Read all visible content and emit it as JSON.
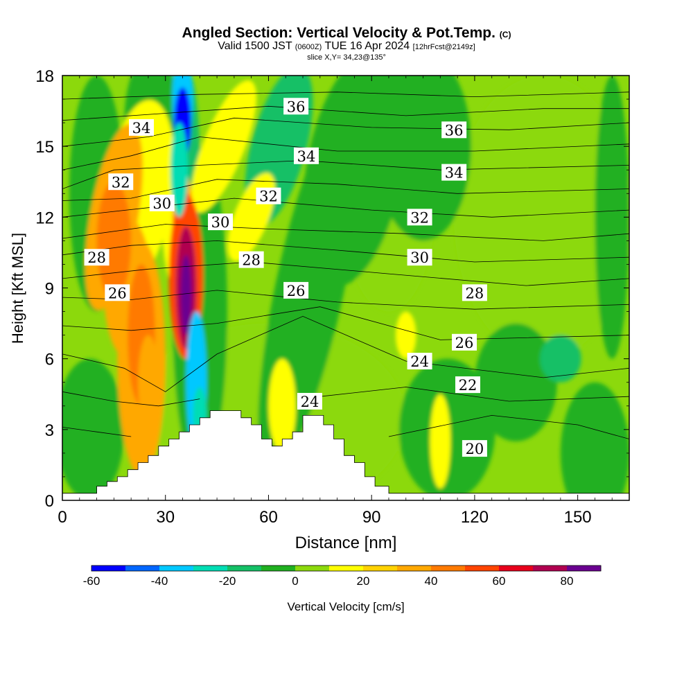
{
  "header": {
    "title": "Angled Section: Vertical Velocity & Pot.Temp.",
    "title_mark": "(C)",
    "valid_prefix": "Valid 1500 JST",
    "valid_utc": "(0600Z)",
    "valid_date": "TUE 16 Apr 2024",
    "forecast": "[12hrFcst@2149z]",
    "slice": "slice X,Y= 34,23@135°"
  },
  "chart_data": {
    "type": "heatmap",
    "xlabel": "Distance [nm]",
    "ylabel": "Height [Kft MSL]",
    "xlim": [
      0,
      165
    ],
    "ylim": [
      0,
      18
    ],
    "xticks": [
      0,
      30,
      60,
      90,
      120,
      150
    ],
    "yticks": [
      0,
      3,
      6,
      9,
      12,
      15,
      18
    ],
    "colorbar": {
      "label": "Vertical Velocity [cm/s]",
      "ticks": [
        -60,
        -40,
        -20,
        0,
        20,
        40,
        60,
        80
      ],
      "levels": [
        -60,
        -50,
        -40,
        -30,
        -20,
        -10,
        0,
        10,
        20,
        30,
        40,
        50,
        60,
        70,
        80,
        90
      ],
      "colors": [
        "#0000ff",
        "#0066ff",
        "#00c8ff",
        "#00ddb4",
        "#14c066",
        "#20b020",
        "#8cd90c",
        "#ffff00",
        "#ffd200",
        "#ffa800",
        "#ff7a00",
        "#ff4400",
        "#e8001c",
        "#b00050",
        "#6a0090"
      ]
    },
    "series": [
      {
        "name": "Vertical Velocity",
        "units": "cm/s",
        "features": [
          {
            "x": 36,
            "y": 9,
            "value": 85
          },
          {
            "x": 15,
            "y": 11,
            "value": 45
          },
          {
            "x": 22,
            "y": 7,
            "value": 40
          },
          {
            "x": 35,
            "y": 17,
            "value": -55
          },
          {
            "x": 39,
            "y": 5,
            "value": -35
          },
          {
            "x": 47,
            "y": 15,
            "value": 20
          },
          {
            "x": 68,
            "y": 16,
            "value": -20
          },
          {
            "x": 110,
            "y": 2,
            "value": 20
          },
          {
            "x": 145,
            "y": 6,
            "value": -20
          }
        ]
      },
      {
        "name": "Pot.Temp.",
        "units": "C",
        "contour_labels": [
          {
            "value": 36,
            "x": 68,
            "y": 16.7
          },
          {
            "value": 36,
            "x": 114,
            "y": 15.7
          },
          {
            "value": 34,
            "x": 23,
            "y": 15.8
          },
          {
            "value": 34,
            "x": 71,
            "y": 14.6
          },
          {
            "value": 34,
            "x": 114,
            "y": 13.9
          },
          {
            "value": 32,
            "x": 17,
            "y": 13.5
          },
          {
            "value": 32,
            "x": 60,
            "y": 12.9
          },
          {
            "value": 32,
            "x": 104,
            "y": 12.0
          },
          {
            "value": 30,
            "x": 29,
            "y": 12.6
          },
          {
            "value": 30,
            "x": 46,
            "y": 11.8
          },
          {
            "value": 30,
            "x": 104,
            "y": 10.3
          },
          {
            "value": 28,
            "x": 10,
            "y": 10.3
          },
          {
            "value": 28,
            "x": 55,
            "y": 10.2
          },
          {
            "value": 28,
            "x": 120,
            "y": 8.8
          },
          {
            "value": 26,
            "x": 16,
            "y": 8.8
          },
          {
            "value": 26,
            "x": 68,
            "y": 8.9
          },
          {
            "value": 26,
            "x": 117,
            "y": 6.7
          },
          {
            "value": 24,
            "x": 104,
            "y": 5.9
          },
          {
            "value": 24,
            "x": 72,
            "y": 4.2
          },
          {
            "value": 22,
            "x": 118,
            "y": 4.9
          },
          {
            "value": 20,
            "x": 120,
            "y": 2.2
          }
        ]
      }
    ],
    "terrain": [
      [
        0,
        0.3
      ],
      [
        10,
        0.3
      ],
      [
        10,
        0.6
      ],
      [
        13,
        0.6
      ],
      [
        13,
        0.8
      ],
      [
        16,
        0.8
      ],
      [
        16,
        1.0
      ],
      [
        19,
        1.0
      ],
      [
        19,
        1.3
      ],
      [
        22,
        1.3
      ],
      [
        22,
        1.6
      ],
      [
        25,
        1.6
      ],
      [
        25,
        1.9
      ],
      [
        28,
        1.9
      ],
      [
        28,
        2.3
      ],
      [
        31,
        2.3
      ],
      [
        31,
        2.6
      ],
      [
        34,
        2.6
      ],
      [
        34,
        2.9
      ],
      [
        37,
        2.9
      ],
      [
        37,
        3.2
      ],
      [
        40,
        3.2
      ],
      [
        40,
        3.5
      ],
      [
        43,
        3.5
      ],
      [
        43,
        3.8
      ],
      [
        52,
        3.8
      ],
      [
        52,
        3.5
      ],
      [
        55,
        3.5
      ],
      [
        55,
        3.2
      ],
      [
        58,
        3.2
      ],
      [
        58,
        2.6
      ],
      [
        61,
        2.6
      ],
      [
        61,
        2.3
      ],
      [
        64,
        2.3
      ],
      [
        64,
        2.6
      ],
      [
        67,
        2.6
      ],
      [
        67,
        2.9
      ],
      [
        70,
        2.9
      ],
      [
        70,
        3.6
      ],
      [
        76,
        3.6
      ],
      [
        76,
        3.2
      ],
      [
        79,
        3.2
      ],
      [
        79,
        2.6
      ],
      [
        82,
        2.6
      ],
      [
        82,
        1.9
      ],
      [
        85,
        1.9
      ],
      [
        85,
        1.6
      ],
      [
        88,
        1.6
      ],
      [
        88,
        1.0
      ],
      [
        91,
        1.0
      ],
      [
        91,
        0.6
      ],
      [
        95,
        0.6
      ],
      [
        95,
        0.3
      ],
      [
        165,
        0.3
      ]
    ]
  }
}
